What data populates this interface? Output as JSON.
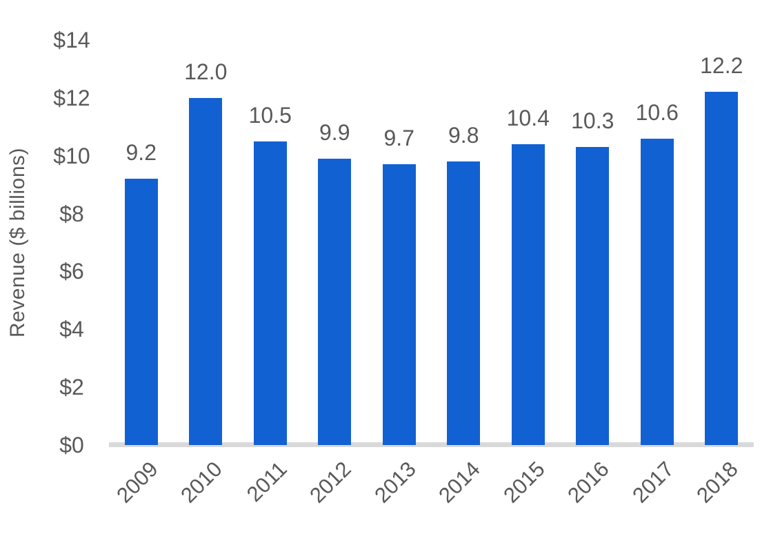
{
  "chart_data": {
    "type": "bar",
    "title": "",
    "categories": [
      "2009",
      "2010",
      "2011",
      "2012",
      "2013",
      "2014",
      "2015",
      "2016",
      "2017",
      "2018"
    ],
    "values": [
      9.2,
      12.0,
      10.5,
      9.9,
      9.7,
      9.8,
      10.4,
      10.3,
      10.6,
      12.2
    ],
    "value_labels": [
      "9.2",
      "12.0",
      "10.5",
      "9.9",
      "9.7",
      "9.8",
      "10.4",
      "10.3",
      "10.6",
      "12.2"
    ],
    "xlabel": "",
    "ylabel": "Revenue ($ billions)",
    "ytick_labels": [
      "$0",
      "$2",
      "$4",
      "$6",
      "$8",
      "$10",
      "$12",
      "$14"
    ],
    "ytick_values": [
      0,
      2,
      4,
      6,
      8,
      10,
      12,
      14
    ],
    "ylim": [
      0,
      14
    ],
    "grid": false,
    "legend_position": "none",
    "bar_color": "#1261d3",
    "axis_line_color": "#d9d9d9",
    "text_color": "#595959",
    "background_color": "#ffffff"
  }
}
